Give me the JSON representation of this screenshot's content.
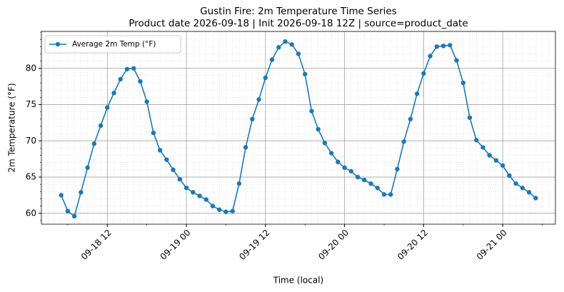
{
  "chart_data": {
    "type": "line",
    "title": "Gustin Fire: 2m Temperature Time Series",
    "subtitle": "Product date 2026-09-18 | Init 2026-09-18 12Z | source=product_date",
    "x_label": "Time (local)",
    "y_label": "2m Temperature (°F)",
    "x": [
      "09-18 05",
      "09-18 06",
      "09-18 07",
      "09-18 08",
      "09-18 09",
      "09-18 10",
      "09-18 11",
      "09-18 12",
      "09-18 13",
      "09-18 14",
      "09-18 15",
      "09-18 16",
      "09-18 17",
      "09-18 18",
      "09-18 19",
      "09-18 20",
      "09-18 21",
      "09-18 22",
      "09-18 23",
      "09-19 00",
      "09-19 01",
      "09-19 02",
      "09-19 03",
      "09-19 04",
      "09-19 05",
      "09-19 06",
      "09-19 07",
      "09-19 08",
      "09-19 09",
      "09-19 10",
      "09-19 11",
      "09-19 12",
      "09-19 13",
      "09-19 14",
      "09-19 15",
      "09-19 16",
      "09-19 17",
      "09-19 18",
      "09-19 19",
      "09-19 20",
      "09-19 21",
      "09-19 22",
      "09-19 23",
      "09-20 00",
      "09-20 01",
      "09-20 02",
      "09-20 03",
      "09-20 04",
      "09-20 05",
      "09-20 06",
      "09-20 07",
      "09-20 08",
      "09-20 09",
      "09-20 10",
      "09-20 11",
      "09-20 12",
      "09-20 13",
      "09-20 14",
      "09-20 15",
      "09-20 16",
      "09-20 17",
      "09-20 18",
      "09-20 19",
      "09-20 20",
      "09-20 21",
      "09-20 22",
      "09-20 23",
      "09-21 00",
      "09-21 01",
      "09-21 02",
      "09-21 03",
      "09-21 04",
      "09-21 05"
    ],
    "series": [
      {
        "name": "Average 2m Temp (°F)",
        "color": "#1f77b4",
        "values": [
          62.5,
          60.3,
          59.6,
          62.9,
          66.3,
          69.6,
          72.1,
          74.6,
          76.6,
          78.5,
          79.9,
          80.0,
          78.2,
          75.4,
          71.1,
          68.7,
          67.4,
          66.0,
          64.7,
          63.5,
          62.9,
          62.4,
          61.9,
          61.0,
          60.5,
          60.2,
          60.3,
          64.1,
          69.1,
          73.0,
          75.7,
          78.7,
          81.2,
          82.9,
          83.7,
          83.3,
          82.0,
          79.2,
          74.1,
          71.6,
          69.7,
          68.3,
          67.1,
          66.3,
          65.8,
          65.0,
          64.6,
          64.1,
          63.5,
          62.6,
          62.6,
          66.1,
          69.9,
          73.0,
          76.5,
          79.3,
          81.7,
          83.0,
          83.1,
          83.2,
          81.1,
          78.0,
          73.2,
          70.1,
          69.1,
          68.0,
          67.3,
          66.6,
          65.2,
          64.1,
          63.5,
          62.9,
          62.1
        ]
      }
    ],
    "xlim": [
      "09-18 02",
      "09-21 08"
    ],
    "xticks": [
      "09-18 12",
      "09-19 00",
      "09-19 12",
      "09-20 00",
      "09-20 12",
      "09-21 00"
    ],
    "ylim": [
      58.5,
      85.1
    ],
    "yticks": [
      60,
      65,
      70,
      75,
      80
    ],
    "grid": true,
    "minor_grid": true,
    "legend": "upper left"
  }
}
